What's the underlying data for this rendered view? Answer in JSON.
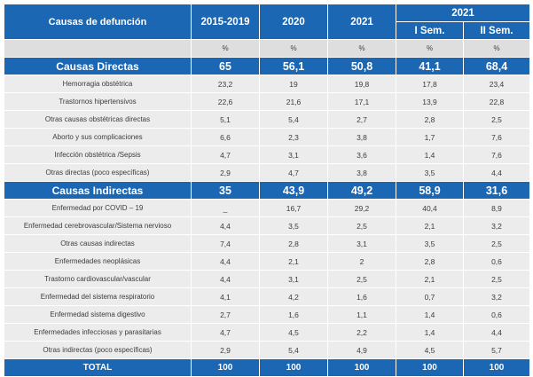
{
  "header": {
    "causes": "Causas de defunción",
    "y1519": "2015-2019",
    "y2020": "2020",
    "y2021": "2021",
    "y2021_group": "2021",
    "sem1": "I Sem.",
    "sem2": "II Sem."
  },
  "unit": [
    "%",
    "%",
    "%",
    "%",
    "%"
  ],
  "groups": [
    {
      "label": "Causas Directas",
      "values": [
        "65",
        "56,1",
        "50,8",
        "41,1",
        "68,4"
      ],
      "rows": [
        {
          "label": "Hemorragia obstétrica",
          "values": [
            "23,2",
            "19",
            "19,8",
            "17,8",
            "23,4"
          ]
        },
        {
          "label": "Trastornos hipertensivos",
          "values": [
            "22,6",
            "21,6",
            "17,1",
            "13,9",
            "22,8"
          ]
        },
        {
          "label": "Otras causas obstétricas directas",
          "values": [
            "5,1",
            "5,4",
            "2,7",
            "2,8",
            "2,5"
          ]
        },
        {
          "label": "Aborto y sus complicaciones",
          "values": [
            "6,6",
            "2,3",
            "3,8",
            "1,7",
            "7,6"
          ]
        },
        {
          "label": "Infección obstétrica /Sepsis",
          "values": [
            "4,7",
            "3,1",
            "3,6",
            "1,4",
            "7,6"
          ]
        },
        {
          "label": "Otras directas (poco específicas)",
          "values": [
            "2,9",
            "4,7",
            "3,8",
            "3,5",
            "4,4"
          ]
        }
      ]
    },
    {
      "label": "Causas Indirectas",
      "values": [
        "35",
        "43,9",
        "49,2",
        "58,9",
        "31,6"
      ],
      "rows": [
        {
          "label": "Enfermedad por COVID – 19",
          "values": [
            "_",
            "16,7",
            "29,2",
            "40,4",
            "8,9"
          ]
        },
        {
          "label": "Enfermedad cerebrovascular/Sistema nervioso",
          "values": [
            "4,4",
            "3,5",
            "2,5",
            "2,1",
            "3,2"
          ]
        },
        {
          "label": "Otras causas indirectas",
          "values": [
            "7,4",
            "2,8",
            "3,1",
            "3,5",
            "2,5"
          ]
        },
        {
          "label": "Enfermedades neoplásicas",
          "values": [
            "4,4",
            "2,1",
            "2",
            "2,8",
            "0,6"
          ]
        },
        {
          "label": "Trastorno cardiovascular/vascular",
          "values": [
            "4,4",
            "3,1",
            "2,5",
            "2,1",
            "2,5"
          ]
        },
        {
          "label": "Enfermedad del sistema respiratorio",
          "values": [
            "4,1",
            "4,2",
            "1,6",
            "0,7",
            "3,2"
          ]
        },
        {
          "label": "Enfermedad sistema digestivo",
          "values": [
            "2,7",
            "1,6",
            "1,1",
            "1,4",
            "0,6"
          ]
        },
        {
          "label": "Enfermedades infecciosas y parasitarias",
          "values": [
            "4,7",
            "4,5",
            "2,2",
            "1,4",
            "4,4"
          ]
        },
        {
          "label": "Otras indirectas (poco específicas)",
          "values": [
            "2,9",
            "5,4",
            "4,9",
            "4,5",
            "5,7"
          ]
        }
      ]
    }
  ],
  "total": {
    "label": "TOTAL",
    "values": [
      "100",
      "100",
      "100",
      "100",
      "100"
    ]
  }
}
